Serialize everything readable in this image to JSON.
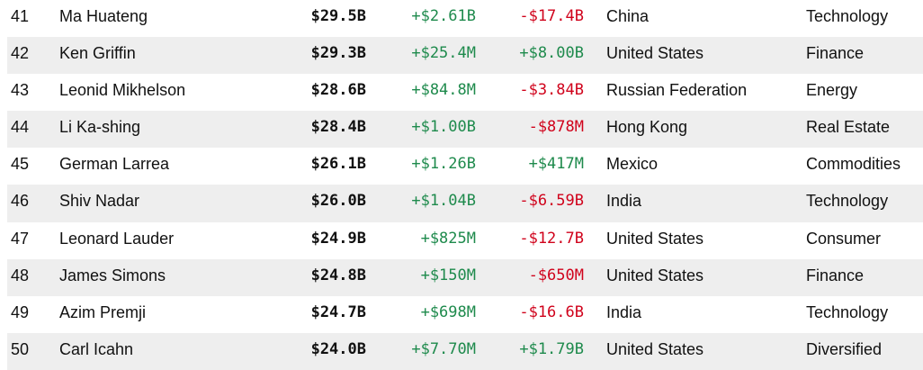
{
  "colors": {
    "positive": "#1e8a4c",
    "negative": "#d0021b",
    "row_shade": "#eeeeee"
  },
  "rows": [
    {
      "rank": "41",
      "name": "Ma Huateng",
      "net_worth": "$29.5B",
      "last_change": "+$2.61B",
      "last_dir": "pos",
      "ytd_change": "-$17.4B",
      "ytd_dir": "neg",
      "country": "China",
      "industry": "Technology"
    },
    {
      "rank": "42",
      "name": "Ken Griffin",
      "net_worth": "$29.3B",
      "last_change": "+$25.4M",
      "last_dir": "pos",
      "ytd_change": "+$8.00B",
      "ytd_dir": "pos",
      "country": "United States",
      "industry": "Finance"
    },
    {
      "rank": "43",
      "name": "Leonid Mikhelson",
      "net_worth": "$28.6B",
      "last_change": "+$84.8M",
      "last_dir": "pos",
      "ytd_change": "-$3.84B",
      "ytd_dir": "neg",
      "country": "Russian Federation",
      "industry": "Energy"
    },
    {
      "rank": "44",
      "name": "Li Ka-shing",
      "net_worth": "$28.4B",
      "last_change": "+$1.00B",
      "last_dir": "pos",
      "ytd_change": "-$878M",
      "ytd_dir": "neg",
      "country": "Hong Kong",
      "industry": "Real Estate"
    },
    {
      "rank": "45",
      "name": "German Larrea",
      "net_worth": "$26.1B",
      "last_change": "+$1.26B",
      "last_dir": "pos",
      "ytd_change": "+$417M",
      "ytd_dir": "pos",
      "country": "Mexico",
      "industry": "Commodities"
    },
    {
      "rank": "46",
      "name": "Shiv Nadar",
      "net_worth": "$26.0B",
      "last_change": "+$1.04B",
      "last_dir": "pos",
      "ytd_change": "-$6.59B",
      "ytd_dir": "neg",
      "country": "India",
      "industry": "Technology"
    },
    {
      "rank": "47",
      "name": "Leonard Lauder",
      "net_worth": "$24.9B",
      "last_change": "+$825M",
      "last_dir": "pos",
      "ytd_change": "-$12.7B",
      "ytd_dir": "neg",
      "country": "United States",
      "industry": "Consumer"
    },
    {
      "rank": "48",
      "name": "James Simons",
      "net_worth": "$24.8B",
      "last_change": "+$150M",
      "last_dir": "pos",
      "ytd_change": "-$650M",
      "ytd_dir": "neg",
      "country": "United States",
      "industry": "Finance"
    },
    {
      "rank": "49",
      "name": "Azim Premji",
      "net_worth": "$24.7B",
      "last_change": "+$698M",
      "last_dir": "pos",
      "ytd_change": "-$16.6B",
      "ytd_dir": "neg",
      "country": "India",
      "industry": "Technology"
    },
    {
      "rank": "50",
      "name": "Carl Icahn",
      "net_worth": "$24.0B",
      "last_change": "+$7.70M",
      "last_dir": "pos",
      "ytd_change": "+$1.79B",
      "ytd_dir": "pos",
      "country": "United States",
      "industry": "Diversified"
    }
  ]
}
